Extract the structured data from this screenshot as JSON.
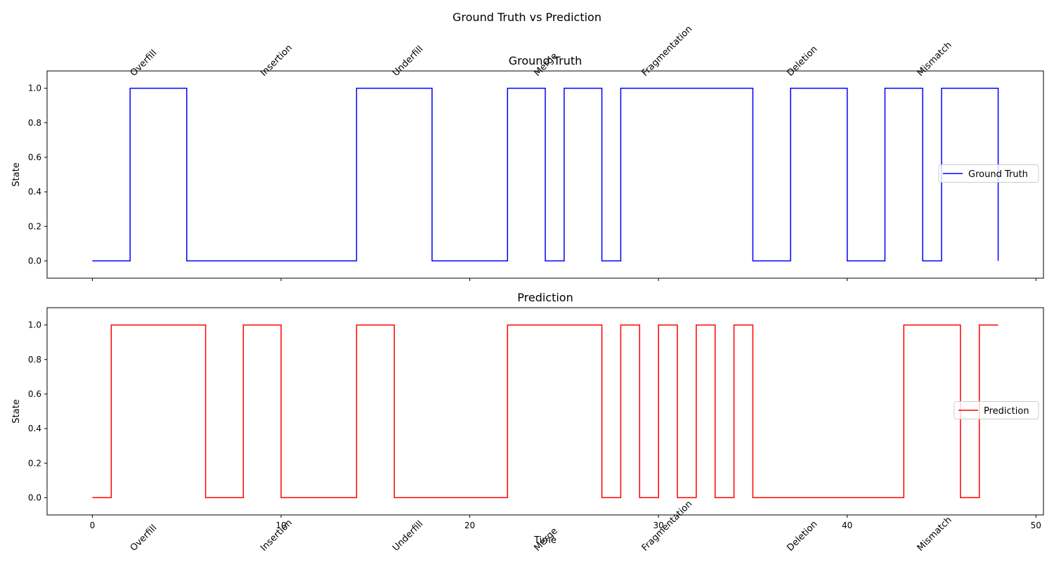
{
  "figure": {
    "suptitle": "Ground Truth vs Prediction",
    "xlabel": "Time"
  },
  "chart_data": [
    {
      "type": "line",
      "drawstyle": "steps-post",
      "title": "Ground Truth",
      "ylabel": "State",
      "xlabel": "",
      "xlim": [
        -2.4,
        50.4
      ],
      "ylim": [
        -0.1,
        1.1
      ],
      "xticks": [
        0,
        10,
        20,
        30,
        40,
        50
      ],
      "show_xtick_labels": false,
      "yticks": [
        0.0,
        0.2,
        0.4,
        0.6,
        0.8,
        1.0
      ],
      "ytick_labels": [
        "0.0",
        "0.2",
        "0.4",
        "0.6",
        "0.8",
        "1.0"
      ],
      "legend_location": "center-right",
      "series": [
        {
          "name": "Ground Truth",
          "color": "#0000ff",
          "x": [
            0,
            2,
            5,
            14,
            18,
            22,
            24,
            25,
            27,
            28,
            35,
            37,
            40,
            42,
            44,
            45,
            48
          ],
          "y": [
            0,
            1,
            0,
            1,
            0,
            1,
            0,
            1,
            0,
            1,
            0,
            1,
            0,
            1,
            0,
            1,
            0
          ]
        }
      ],
      "annotations": [
        {
          "text": "Overfill",
          "x": 2.2
        },
        {
          "text": "Insertion",
          "x": 9.1
        },
        {
          "text": "Underfill",
          "x": 16.1
        },
        {
          "text": "Merge",
          "x": 23.6
        },
        {
          "text": "Fragmentation",
          "x": 29.3
        },
        {
          "text": "Deletion",
          "x": 37.0
        },
        {
          "text": "Mismatch",
          "x": 43.9
        }
      ]
    },
    {
      "type": "line",
      "drawstyle": "steps-post",
      "title": "Prediction",
      "ylabel": "State",
      "xlabel": "Time",
      "xlim": [
        -2.4,
        50.4
      ],
      "ylim": [
        -0.1,
        1.1
      ],
      "xticks": [
        0,
        10,
        20,
        30,
        40,
        50
      ],
      "xtick_labels": [
        "0",
        "10",
        "20",
        "30",
        "40",
        "50"
      ],
      "show_xtick_labels": true,
      "yticks": [
        0.0,
        0.2,
        0.4,
        0.6,
        0.8,
        1.0
      ],
      "ytick_labels": [
        "0.0",
        "0.2",
        "0.4",
        "0.6",
        "0.8",
        "1.0"
      ],
      "legend_location": "center-right",
      "series": [
        {
          "name": "Prediction",
          "color": "#ff0000",
          "x": [
            0,
            1,
            6,
            8,
            10,
            14,
            16,
            22,
            27,
            28,
            29,
            30,
            31,
            32,
            33,
            34,
            35,
            43,
            46,
            47,
            48
          ],
          "y": [
            0,
            1,
            0,
            1,
            0,
            1,
            0,
            1,
            0,
            1,
            0,
            1,
            0,
            1,
            0,
            1,
            0,
            1,
            0,
            1,
            1
          ]
        }
      ],
      "annotations": [
        {
          "text": "Overfill",
          "x": 2.2
        },
        {
          "text": "Insertion",
          "x": 9.1
        },
        {
          "text": "Underfill",
          "x": 16.1
        },
        {
          "text": "Merge",
          "x": 23.6
        },
        {
          "text": "Fragmentation",
          "x": 29.3
        },
        {
          "text": "Deletion",
          "x": 37.0
        },
        {
          "text": "Mismatch",
          "x": 43.9
        }
      ]
    }
  ]
}
